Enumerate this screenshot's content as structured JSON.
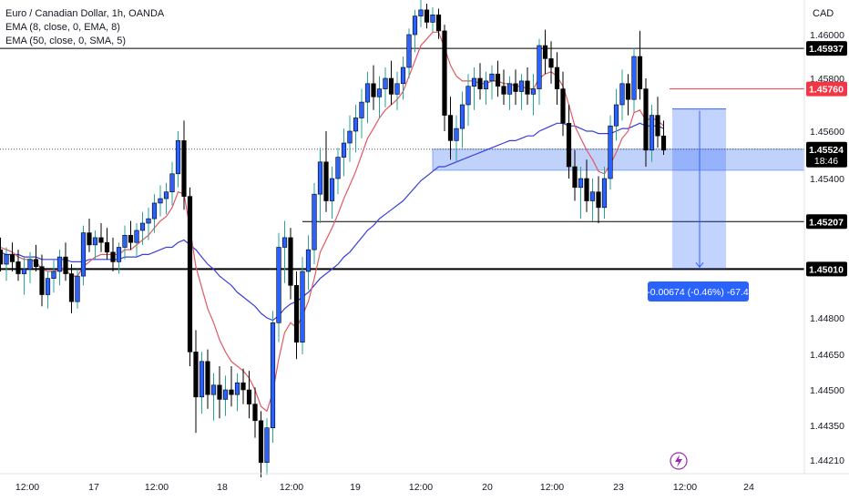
{
  "legend": {
    "title": "Euro / Canadian Dollar, 1h, OANDA",
    "ema8": "EMA (8, close, 0, EMA, 8)",
    "ema50": "EMA (50, close, 0, SMA, 5)"
  },
  "currency": "CAD",
  "colors": {
    "candle": "#2962ff",
    "candle_border": "#000000",
    "ema_fast": "#e05a62",
    "ema_slow": "#3b3fd9",
    "wick": "#26a69a",
    "zone": "#4a7ef0",
    "target": "#2962ff",
    "red_line": "#f23645",
    "measure_box": "#2962ff"
  },
  "chart_data": {
    "type": "candlestick",
    "instrument": "Euro / Canadian Dollar, 1h, OANDA",
    "y_range": [
      1.4418,
      1.4628
    ],
    "y_ticks": [
      "1.46000",
      "1.45800",
      "1.45600",
      "1.45400",
      "1.45200",
      "1.45000",
      "1.44800",
      "1.44650",
      "1.44500",
      "1.44350",
      "1.44210"
    ],
    "x_ticks": [
      "12:00",
      "17",
      "12:00",
      "18",
      "12:00",
      "19",
      "12:00",
      "20",
      "12:00",
      "23",
      "12:00",
      "24"
    ],
    "price_tags": [
      {
        "value": 1.45937,
        "label": "1.45937",
        "style": "black"
      },
      {
        "value": 1.4576,
        "label": "1.45760",
        "style": "red"
      },
      {
        "value": 1.45524,
        "label": "1.45524",
        "style": "black",
        "sub": "18:46"
      },
      {
        "value": 1.45207,
        "label": "1.45207",
        "style": "black"
      },
      {
        "value": 1.4501,
        "label": "1.45010",
        "style": "black"
      }
    ],
    "horizontal_levels": [
      1.45937,
      1.45207,
      1.4501
    ],
    "current_price": 1.45524,
    "demand_zone": {
      "top": 1.45524,
      "bottom": 1.45435
    },
    "short_position": {
      "entry": 1.45684,
      "stop": 1.4576,
      "target": 1.4501
    },
    "measure_label": "-0.00674 (-0.46%) -67.4",
    "candles": [
      [
        1.4512,
        1.4521,
        1.4505,
        1.4509
      ],
      [
        1.4509,
        1.4514,
        1.45,
        1.4503
      ],
      [
        1.4503,
        1.451,
        1.4496,
        1.4507
      ],
      [
        1.4507,
        1.4512,
        1.45,
        1.4504
      ],
      [
        1.4504,
        1.4509,
        1.4496,
        1.4499
      ],
      [
        1.4499,
        1.4506,
        1.449,
        1.4501
      ],
      [
        1.4501,
        1.4508,
        1.4495,
        1.4505
      ],
      [
        1.4505,
        1.4511,
        1.45,
        1.4502
      ],
      [
        1.4502,
        1.4507,
        1.4485,
        1.449
      ],
      [
        1.449,
        1.45,
        1.4484,
        1.4497
      ],
      [
        1.4497,
        1.4505,
        1.4491,
        1.45
      ],
      [
        1.45,
        1.4509,
        1.4494,
        1.4506
      ],
      [
        1.4506,
        1.4512,
        1.4496,
        1.4499
      ],
      [
        1.4499,
        1.4503,
        1.4482,
        1.4487
      ],
      [
        1.4487,
        1.4501,
        1.4484,
        1.4498
      ],
      [
        1.4498,
        1.4519,
        1.4494,
        1.4516
      ],
      [
        1.4516,
        1.4522,
        1.4508,
        1.4511
      ],
      [
        1.4511,
        1.4517,
        1.4505,
        1.4514
      ],
      [
        1.4514,
        1.452,
        1.4508,
        1.4512
      ],
      [
        1.4512,
        1.4518,
        1.4505,
        1.4508
      ],
      [
        1.4508,
        1.4514,
        1.45,
        1.4504
      ],
      [
        1.4504,
        1.4512,
        1.4499,
        1.451
      ],
      [
        1.451,
        1.4519,
        1.4505,
        1.4515
      ],
      [
        1.4515,
        1.4521,
        1.4509,
        1.4512
      ],
      [
        1.4512,
        1.452,
        1.4506,
        1.4517
      ],
      [
        1.4517,
        1.4525,
        1.4511,
        1.452
      ],
      [
        1.452,
        1.4527,
        1.4513,
        1.4522
      ],
      [
        1.4522,
        1.4533,
        1.4516,
        1.4529
      ],
      [
        1.4529,
        1.4537,
        1.4523,
        1.4531
      ],
      [
        1.4531,
        1.4538,
        1.4524,
        1.4534
      ],
      [
        1.4534,
        1.4547,
        1.4528,
        1.4542
      ],
      [
        1.4542,
        1.456,
        1.4536,
        1.4556
      ],
      [
        1.4556,
        1.4564,
        1.4526,
        1.4532
      ],
      [
        1.4532,
        1.4536,
        1.446,
        1.4466
      ],
      [
        1.4466,
        1.4475,
        1.4432,
        1.4447
      ],
      [
        1.4447,
        1.4466,
        1.444,
        1.4462
      ],
      [
        1.4462,
        1.4467,
        1.4442,
        1.4448
      ],
      [
        1.4448,
        1.4457,
        1.4437,
        1.4452
      ],
      [
        1.4452,
        1.446,
        1.4438,
        1.4446
      ],
      [
        1.4446,
        1.4456,
        1.4439,
        1.445
      ],
      [
        1.445,
        1.446,
        1.4443,
        1.4448
      ],
      [
        1.4448,
        1.4457,
        1.4441,
        1.4453
      ],
      [
        1.4453,
        1.4459,
        1.4444,
        1.445
      ],
      [
        1.445,
        1.4458,
        1.4438,
        1.4444
      ],
      [
        1.4444,
        1.4451,
        1.443,
        1.4437
      ],
      [
        1.4437,
        1.4441,
        1.4414,
        1.442
      ],
      [
        1.442,
        1.4438,
        1.4415,
        1.4434
      ],
      [
        1.4434,
        1.4483,
        1.4428,
        1.4478
      ],
      [
        1.4478,
        1.4516,
        1.447,
        1.451
      ],
      [
        1.451,
        1.4521,
        1.4495,
        1.4514
      ],
      [
        1.4514,
        1.4518,
        1.4488,
        1.4494
      ],
      [
        1.4494,
        1.45,
        1.4463,
        1.447
      ],
      [
        1.447,
        1.4506,
        1.4465,
        1.45
      ],
      [
        1.45,
        1.4515,
        1.4492,
        1.4509
      ],
      [
        1.4509,
        1.4538,
        1.4503,
        1.4533
      ],
      [
        1.4533,
        1.4553,
        1.452,
        1.4547
      ],
      [
        1.4547,
        1.456,
        1.4525,
        1.453
      ],
      [
        1.453,
        1.4545,
        1.4522,
        1.454
      ],
      [
        1.454,
        1.4553,
        1.4533,
        1.4549
      ],
      [
        1.4549,
        1.4561,
        1.4541,
        1.4555
      ],
      [
        1.4555,
        1.4566,
        1.4547,
        1.456
      ],
      [
        1.456,
        1.457,
        1.4551,
        1.4565
      ],
      [
        1.4565,
        1.4576,
        1.4557,
        1.4571
      ],
      [
        1.4571,
        1.4583,
        1.4563,
        1.4578
      ],
      [
        1.4578,
        1.4586,
        1.4568,
        1.4573
      ],
      [
        1.4573,
        1.4581,
        1.4565,
        1.4576
      ],
      [
        1.4576,
        1.4585,
        1.4569,
        1.458
      ],
      [
        1.458,
        1.4588,
        1.457,
        1.4574
      ],
      [
        1.4574,
        1.4583,
        1.4568,
        1.4578
      ],
      [
        1.4578,
        1.459,
        1.4572,
        1.4585
      ],
      [
        1.4585,
        1.4605,
        1.458,
        1.46
      ],
      [
        1.46,
        1.462,
        1.4592,
        1.4615
      ],
      [
        1.4615,
        1.4628,
        1.4606,
        1.462
      ],
      [
        1.462,
        1.4625,
        1.4605,
        1.461
      ],
      [
        1.461,
        1.4622,
        1.4602,
        1.4616
      ],
      [
        1.4616,
        1.4621,
        1.4598,
        1.4603
      ],
      [
        1.4603,
        1.4608,
        1.456,
        1.4566
      ],
      [
        1.4566,
        1.4573,
        1.4548,
        1.4556
      ],
      [
        1.4556,
        1.4566,
        1.4547,
        1.4561
      ],
      [
        1.4561,
        1.4575,
        1.4553,
        1.457
      ],
      [
        1.457,
        1.4582,
        1.4562,
        1.4577
      ],
      [
        1.4577,
        1.4585,
        1.4568,
        1.458
      ],
      [
        1.458,
        1.4587,
        1.4572,
        1.4576
      ],
      [
        1.4576,
        1.4583,
        1.457,
        1.4579
      ],
      [
        1.4579,
        1.4586,
        1.4572,
        1.4582
      ],
      [
        1.4582,
        1.4588,
        1.4573,
        1.4577
      ],
      [
        1.4577,
        1.4584,
        1.457,
        1.4574
      ],
      [
        1.4574,
        1.4581,
        1.4568,
        1.4578
      ],
      [
        1.4578,
        1.4584,
        1.457,
        1.4575
      ],
      [
        1.4575,
        1.4582,
        1.4568,
        1.4579
      ],
      [
        1.4579,
        1.4585,
        1.457,
        1.4574
      ],
      [
        1.4574,
        1.4582,
        1.4566,
        1.4576
      ],
      [
        1.4576,
        1.4598,
        1.457,
        1.4595
      ],
      [
        1.4595,
        1.4604,
        1.4582,
        1.4589
      ],
      [
        1.4589,
        1.4597,
        1.4578,
        1.4585
      ],
      [
        1.4585,
        1.4592,
        1.457,
        1.4576
      ],
      [
        1.4576,
        1.4583,
        1.4558,
        1.4563
      ],
      [
        1.4563,
        1.457,
        1.454,
        1.4545
      ],
      [
        1.4545,
        1.4552,
        1.453,
        1.4536
      ],
      [
        1.4536,
        1.4545,
        1.4522,
        1.454
      ],
      [
        1.454,
        1.4548,
        1.4525,
        1.453
      ],
      [
        1.453,
        1.454,
        1.4521,
        1.4534
      ],
      [
        1.4534,
        1.4541,
        1.452,
        1.4527
      ],
      [
        1.4527,
        1.4545,
        1.4522,
        1.454
      ],
      [
        1.454,
        1.4566,
        1.4535,
        1.4562
      ],
      [
        1.4562,
        1.4576,
        1.4556,
        1.457
      ],
      [
        1.457,
        1.4584,
        1.4564,
        1.4578
      ],
      [
        1.4578,
        1.4582,
        1.4566,
        1.4572
      ],
      [
        1.4572,
        1.4594,
        1.4567,
        1.459
      ],
      [
        1.459,
        1.4603,
        1.4572,
        1.4576
      ],
      [
        1.4576,
        1.458,
        1.4545,
        1.4552
      ],
      [
        1.4552,
        1.457,
        1.4547,
        1.4566
      ],
      [
        1.4566,
        1.4573,
        1.4553,
        1.4558
      ],
      [
        1.4558,
        1.4564,
        1.455,
        1.4552
      ]
    ],
    "ema_fast": [
      1.4512,
      1.451,
      1.4509,
      1.4508,
      1.4506,
      1.4505,
      1.4505,
      1.4504,
      1.4501,
      1.45,
      1.45,
      1.4501,
      1.4501,
      1.4498,
      1.4498,
      1.4502,
      1.4504,
      1.4506,
      1.4507,
      1.4507,
      1.4507,
      1.4507,
      1.4509,
      1.4509,
      1.4511,
      1.4513,
      1.4515,
      1.4518,
      1.4521,
      1.4523,
      1.4527,
      1.4534,
      1.4533,
      1.4518,
      1.4502,
      1.4493,
      1.4484,
      1.4478,
      1.4471,
      1.4466,
      1.4462,
      1.446,
      1.4458,
      1.4455,
      1.445,
      1.4443,
      1.4441,
      1.4449,
      1.4463,
      1.4474,
      1.4478,
      1.4476,
      1.4481,
      1.4487,
      1.4497,
      1.4508,
      1.4513,
      1.4518,
      1.4524,
      1.4531,
      1.4537,
      1.4543,
      1.455,
      1.4557,
      1.4561,
      1.4565,
      1.4568,
      1.457,
      1.4572,
      1.4575,
      1.4581,
      1.4588,
      1.4595,
      1.4598,
      1.4602,
      1.4602,
      1.4594,
      1.4586,
      1.4581,
      1.4579,
      1.4579,
      1.4579,
      1.4578,
      1.4578,
      1.4579,
      1.4579,
      1.4578,
      1.4578,
      1.4577,
      1.4577,
      1.4576,
      1.4576,
      1.458,
      1.4582,
      1.4583,
      1.4581,
      1.4577,
      1.457,
      1.4562,
      1.4557,
      1.4552,
      1.4548,
      1.4543,
      1.4542,
      1.4546,
      1.4551,
      1.4557,
      1.456,
      1.4567,
      1.4568,
      1.4564,
      1.4565,
      1.4564,
      1.4562
    ],
    "ema_slow": [
      1.4508,
      1.4508,
      1.4507,
      1.4507,
      1.4507,
      1.4506,
      1.4506,
      1.4506,
      1.4505,
      1.4505,
      1.4505,
      1.4505,
      1.4505,
      1.4504,
      1.4504,
      1.4504,
      1.4505,
      1.4505,
      1.4505,
      1.4505,
      1.4505,
      1.4505,
      1.4506,
      1.4506,
      1.4506,
      1.4507,
      1.4507,
      1.4508,
      1.4509,
      1.451,
      1.451,
      1.4512,
      1.4513,
      1.4511,
      1.4509,
      1.4506,
      1.4503,
      1.4501,
      1.4498,
      1.4496,
      1.4494,
      1.4491,
      1.4489,
      1.4487,
      1.4485,
      1.4482,
      1.448,
      1.4479,
      1.4481,
      1.4484,
      1.4486,
      1.4487,
      1.4489,
      1.4491,
      1.4494,
      1.4497,
      1.4499,
      1.4501,
      1.4503,
      1.4506,
      1.4508,
      1.4511,
      1.4514,
      1.4517,
      1.4519,
      1.4522,
      1.4524,
      1.4526,
      1.4528,
      1.453,
      1.4533,
      1.4536,
      1.4539,
      1.4541,
      1.4543,
      1.4545,
      1.4545,
      1.4546,
      1.4547,
      1.4548,
      1.4549,
      1.455,
      1.4551,
      1.4552,
      1.4553,
      1.4554,
      1.4555,
      1.4556,
      1.4556,
      1.4557,
      1.4558,
      1.4558,
      1.456,
      1.4561,
      1.4562,
      1.4563,
      1.4563,
      1.4562,
      1.4562,
      1.4561,
      1.456,
      1.456,
      1.4559,
      1.4559,
      1.4559,
      1.456,
      1.4561,
      1.4561,
      1.4562,
      1.4563,
      1.4562,
      1.4562,
      1.4562,
      1.4561
    ]
  }
}
